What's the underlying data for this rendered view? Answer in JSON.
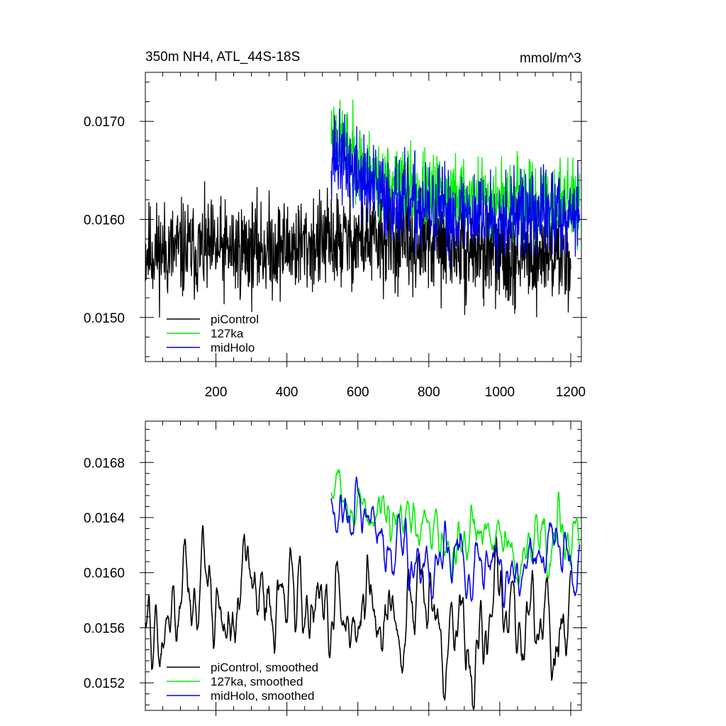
{
  "chart_data": [
    {
      "type": "line",
      "title": "350m NH4, ATL_44S-18S",
      "units": "mmol/m^3",
      "xlabel": "",
      "ylabel": "",
      "xlim": [
        1,
        1230
      ],
      "ylim": [
        0.01455,
        0.0175
      ],
      "xticks": [
        "200",
        "400",
        "600",
        "800",
        "1000",
        "1200"
      ],
      "yticks": [
        "0.0150",
        "0.0160",
        "0.0170"
      ],
      "legend_position": "bottom-left",
      "series": [
        {
          "name": "piControl",
          "color": "#000000",
          "x_start": 1,
          "x_end": 1200,
          "mean": [
            0.01568,
            0.01568,
            0.01572,
            0.0158,
            0.01575,
            0.01565,
            0.01565
          ],
          "amplitude": 0.00045,
          "seed": 11
        },
        {
          "name": "127ka",
          "color": "#00ee00",
          "x_start": 525,
          "x_end": 1225,
          "mean": [
            0.0169,
            0.0164,
            0.01628,
            0.01622,
            0.01618,
            0.0162
          ],
          "amplitude": 0.00035,
          "seed": 23
        },
        {
          "name": "midHolo",
          "color": "#0000ee",
          "x_start": 525,
          "x_end": 1225,
          "mean": [
            0.0167,
            0.01625,
            0.01608,
            0.01605,
            0.01605,
            0.0161
          ],
          "amplitude": 0.0004,
          "seed": 37
        }
      ]
    },
    {
      "type": "line",
      "title": "",
      "xlabel": "",
      "ylabel": "",
      "xlim": [
        1,
        1230
      ],
      "ylim": [
        0.015,
        0.0171
      ],
      "xticks": [],
      "yticks": [
        "0.0152",
        "0.0156",
        "0.0160",
        "0.0164",
        "0.0168"
      ],
      "legend_position": "bottom-left",
      "series": [
        {
          "name": "piControl, smoothed",
          "color": "#000000",
          "x_start": 1,
          "x_end": 1200,
          "mean": [
            0.01575,
            0.0158,
            0.01578,
            0.01565,
            0.0157,
            0.01568,
            0.0156
          ],
          "amplitude": 0.0003,
          "seed": 5
        },
        {
          "name": "127ka, smoothed",
          "color": "#00ee00",
          "x_start": 525,
          "x_end": 1225,
          "mean": [
            0.0167,
            0.0164,
            0.01625,
            0.01622,
            0.01618,
            0.0162
          ],
          "amplitude": 0.00018,
          "seed": 9
        },
        {
          "name": "midHolo, smoothed",
          "color": "#0000ee",
          "x_start": 525,
          "x_end": 1225,
          "mean": [
            0.0166,
            0.01622,
            0.01605,
            0.01605,
            0.01605,
            0.01612
          ],
          "amplitude": 0.0002,
          "seed": 17
        }
      ]
    }
  ]
}
